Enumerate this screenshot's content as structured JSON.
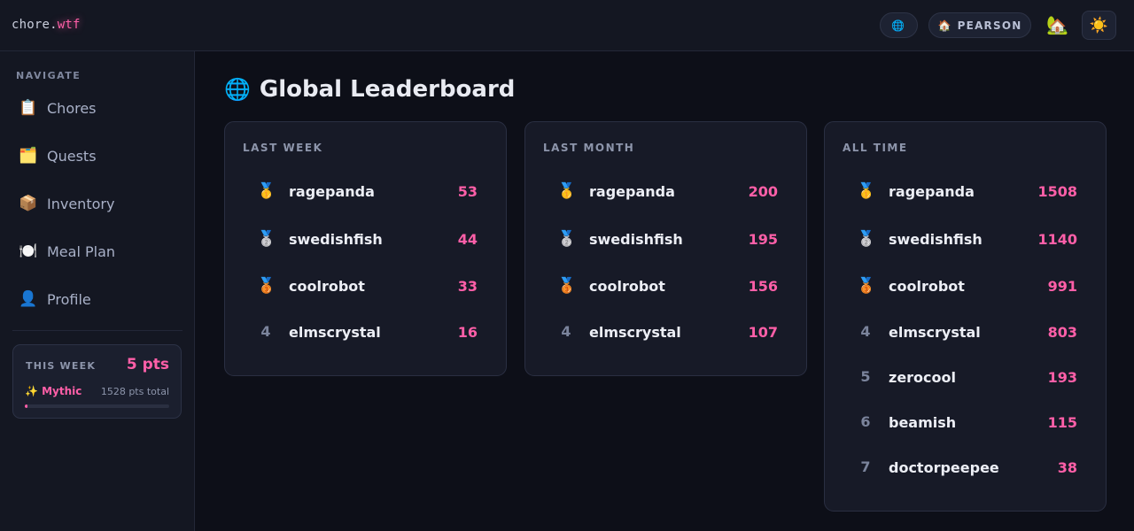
{
  "app": {
    "logo_main": "chore.",
    "logo_accent": "wtf",
    "globe_icon": "🌐",
    "house_pill_icon": "🏠",
    "house_pill_label": "PEARSON",
    "home_icon": "🏡",
    "theme_icon": "☀️"
  },
  "sidebar": {
    "heading": "NAVIGATE",
    "items": [
      {
        "icon": "📋",
        "label": "Chores"
      },
      {
        "icon": "🗂️",
        "label": "Quests"
      },
      {
        "icon": "📦",
        "label": "Inventory"
      },
      {
        "icon": "🍽️",
        "label": "Meal Plan"
      },
      {
        "icon": "👤",
        "label": "Profile"
      }
    ],
    "week_card": {
      "label": "THIS WEEK",
      "points": "5 pts",
      "rank": "✨ Mythic",
      "total": "1528 pts total",
      "progress": 0.02
    }
  },
  "main": {
    "title_icon": "🌐",
    "title": "Global Leaderboard",
    "boards": [
      {
        "title": "LAST WEEK",
        "rows": [
          {
            "rank": "🥇",
            "name": "ragepanda",
            "score": "53"
          },
          {
            "rank": "🥈",
            "name": "swedishfish",
            "score": "44"
          },
          {
            "rank": "🥉",
            "name": "coolrobot",
            "score": "33"
          },
          {
            "rank": "4",
            "name": "elmscrystal",
            "score": "16"
          }
        ]
      },
      {
        "title": "LAST MONTH",
        "rows": [
          {
            "rank": "🥇",
            "name": "ragepanda",
            "score": "200"
          },
          {
            "rank": "🥈",
            "name": "swedishfish",
            "score": "195"
          },
          {
            "rank": "🥉",
            "name": "coolrobot",
            "score": "156"
          },
          {
            "rank": "4",
            "name": "elmscrystal",
            "score": "107"
          }
        ]
      },
      {
        "title": "ALL TIME",
        "rows": [
          {
            "rank": "🥇",
            "name": "ragepanda",
            "score": "1508"
          },
          {
            "rank": "🥈",
            "name": "swedishfish",
            "score": "1140"
          },
          {
            "rank": "🥉",
            "name": "coolrobot",
            "score": "991"
          },
          {
            "rank": "4",
            "name": "elmscrystal",
            "score": "803"
          },
          {
            "rank": "5",
            "name": "zerocool",
            "score": "193"
          },
          {
            "rank": "6",
            "name": "beamish",
            "score": "115"
          },
          {
            "rank": "7",
            "name": "doctorpeepee",
            "score": "38"
          }
        ]
      }
    ]
  }
}
